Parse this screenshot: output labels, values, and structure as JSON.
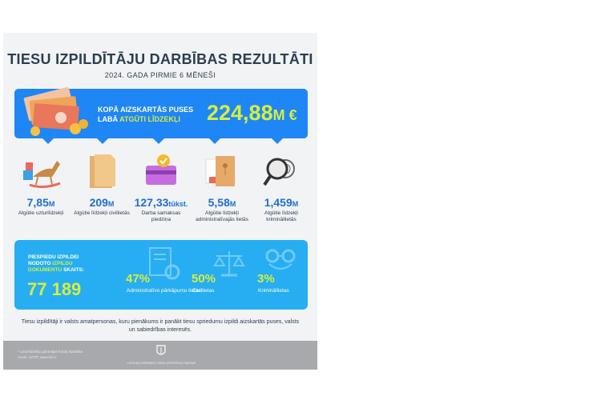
{
  "title": "TIESU IZPILDĪTĀJU DARBĪBAS REZULTĀTI",
  "subtitle": "2024. GADA PIRMIE 6 MĒNEŠI",
  "banner": {
    "label_line1": "KOPĀ AIZSKARTĀS PUSES",
    "label_line2_a": "LABĀ",
    "label_line2_b": "ATGŪTI LĪDZEKĻI",
    "amount": "224,88",
    "unit": "M €"
  },
  "stats": [
    {
      "value": "7,85",
      "unit": "M",
      "desc": "Atgūtie uzturlīdzekļi",
      "icon": "rocking-horse-icon"
    },
    {
      "value": "209",
      "unit": "M",
      "desc": "Atgūtie līdzekļi civillietās",
      "icon": "folder-icon"
    },
    {
      "value": "127,33",
      "unit": "tūkst.",
      "desc": "Darba samaksas piedziņa",
      "icon": "wallet-icon"
    },
    {
      "value": "5,58",
      "unit": "M",
      "desc": "Atgūtie līdzekļi administratīvajās lietās",
      "icon": "envelope-documents-icon"
    },
    {
      "value": "1,459",
      "unit": "M",
      "desc": "Atgūtie līdzekļi krimināllietās",
      "icon": "magnifier-fingerprint-icon"
    }
  ],
  "enforcement": {
    "line1": "PIESPIEDU IZPILDEI",
    "line2_a": "NODOTO",
    "line2_b": "IZPILDU",
    "line3_a": "DOKUMENTU",
    "line3_b": "SKAITS:",
    "count": "77 189",
    "items": [
      {
        "pct": "47%",
        "desc": "Administratīvo pārkāpumu lietas",
        "icon": "document-gear-icon"
      },
      {
        "pct": "50%",
        "desc": "Civillietas",
        "icon": "scales-icon"
      },
      {
        "pct": "3%",
        "desc": "Krimināllietas",
        "icon": "handcuffs-icon"
      }
    ]
  },
  "footer_text": "Tiesu izpildītāji ir valsts amatpersonas, kuru pienākums ir panākt tiesu spriedumu izpildi aizskartās puses, valsts un sabiedrības interesēs.",
  "footnote_line1": "* Uzturlīdzekļu garantijas fonda statistika",
  "footnote_line2": "Avots: LZTIP, www.lzti.lv",
  "org_name": "LATVIJAS ZVĒRINĀTU TIESU IZPILDĪTĀJU PADOME",
  "colors": {
    "blue": "#1f86f5",
    "light_blue": "#27aef2",
    "accent": "#d7ee3c",
    "dark": "#2c3e50"
  }
}
